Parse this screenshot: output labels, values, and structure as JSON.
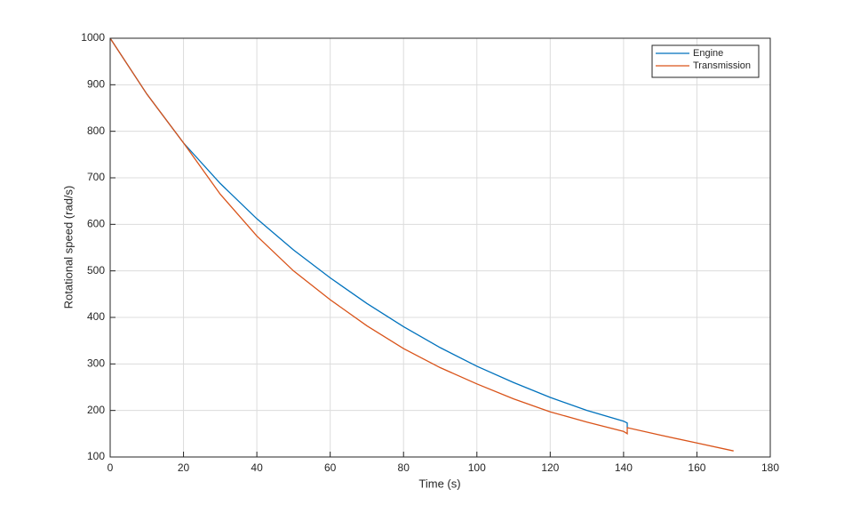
{
  "chart_data": {
    "type": "line",
    "xlabel": "Time (s)",
    "ylabel": "Rotational speed (rad/s)",
    "xlim": [
      0,
      180
    ],
    "ylim": [
      100,
      1000
    ],
    "xticks": [
      0,
      20,
      40,
      60,
      80,
      100,
      120,
      140,
      160,
      180
    ],
    "yticks": [
      100,
      200,
      300,
      400,
      500,
      600,
      700,
      800,
      900,
      1000
    ],
    "grid": true,
    "legend": "northeast",
    "series": [
      {
        "name": "Engine",
        "color": "#0072bd",
        "x": [
          0,
          10,
          20,
          30,
          40,
          50,
          60,
          70,
          80,
          90,
          100,
          110,
          120,
          130,
          140,
          141,
          141
        ],
        "values": [
          1000,
          880,
          775,
          688,
          612,
          545,
          485,
          430,
          380,
          335,
          295,
          260,
          228,
          200,
          177,
          173,
          163
        ]
      },
      {
        "name": "Transmission",
        "color": "#d95319",
        "x": [
          0,
          10,
          20,
          30,
          40,
          50,
          60,
          70,
          80,
          90,
          100,
          110,
          120,
          130,
          140,
          141,
          141,
          150,
          160,
          170
        ],
        "values": [
          1000,
          880,
          775,
          665,
          575,
          500,
          438,
          382,
          333,
          292,
          257,
          225,
          197,
          175,
          155,
          150,
          163,
          147,
          130,
          113
        ]
      }
    ]
  }
}
